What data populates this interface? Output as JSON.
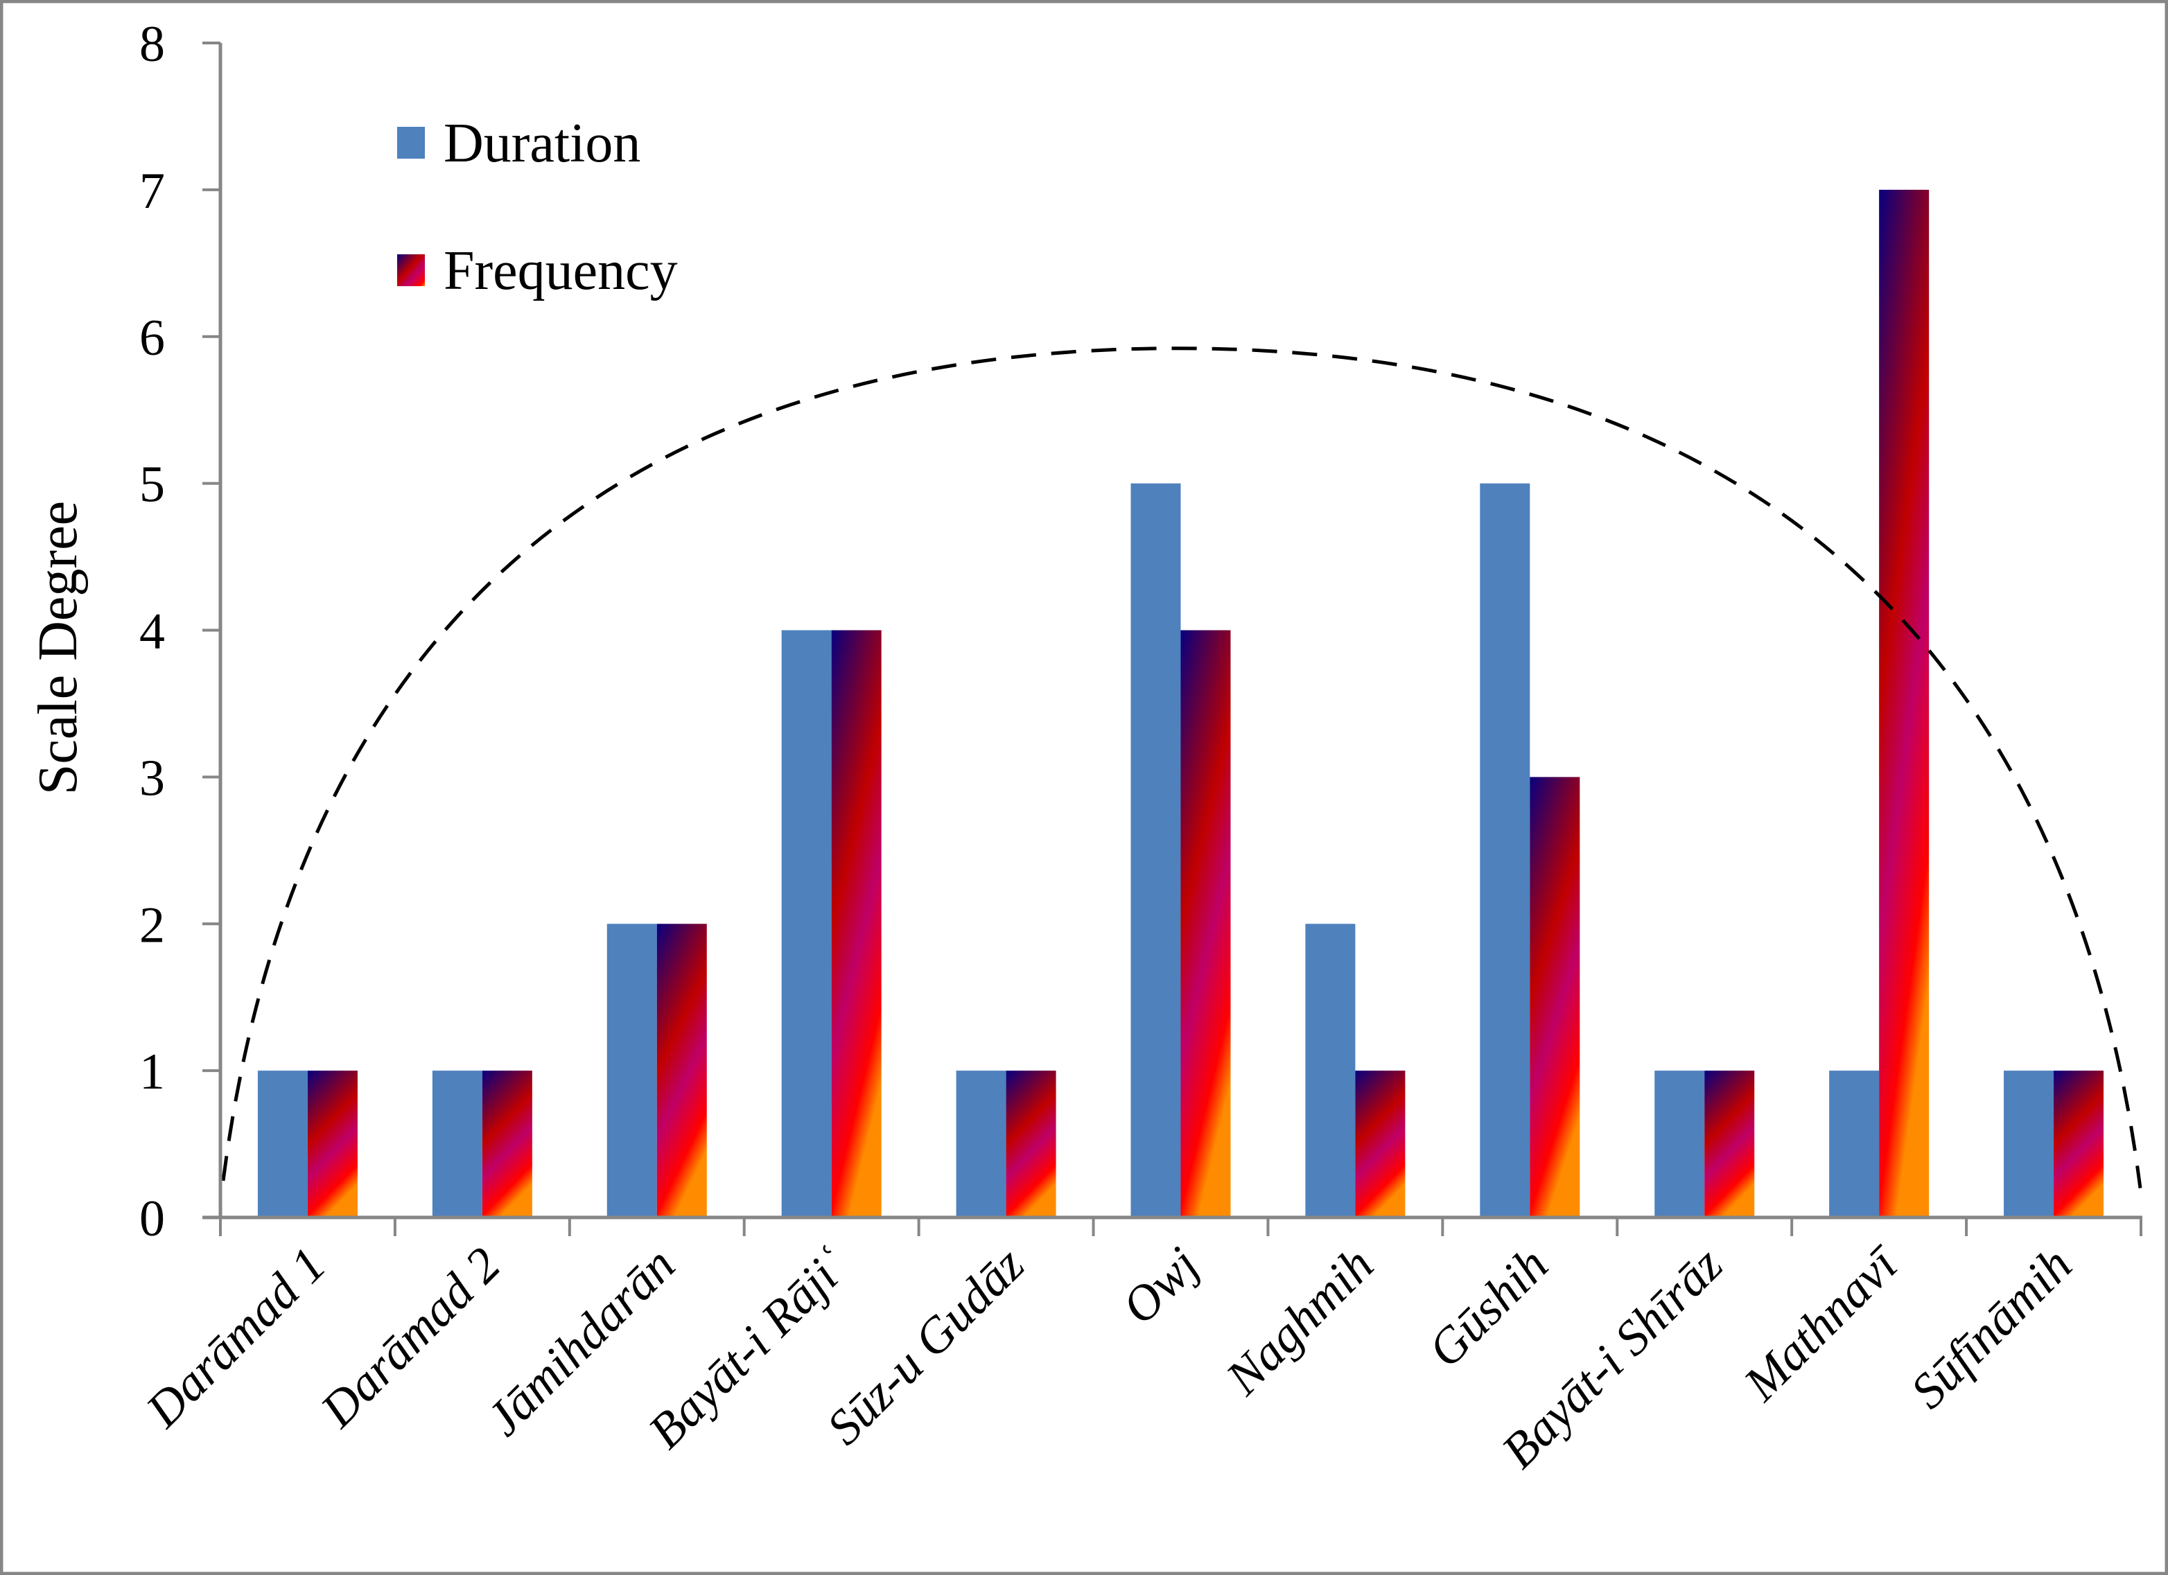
{
  "chart_data": {
    "type": "bar",
    "title": "",
    "xlabel": "",
    "ylabel": "Scale Degree",
    "ylim": [
      0,
      8
    ],
    "yticks": [
      "0",
      "1",
      "2",
      "3",
      "4",
      "5",
      "6",
      "7",
      "8"
    ],
    "grid": false,
    "legend_position": "top-left",
    "categories": [
      "Darāmad 1",
      "Darāmad 2",
      "Jāmihdarān",
      "Bayāt-i Rājiʿ",
      "Sūz-u Gudāz",
      "Owj",
      "Naghmih",
      "Gūshih",
      "Bayāt-i Shīrāz",
      "Mathnavī",
      "Sūfīnāmih"
    ],
    "series": [
      {
        "name": "Duration",
        "color": "#4F81BD",
        "values": [
          1,
          1,
          2,
          4,
          1,
          5,
          2,
          5,
          1,
          1,
          1
        ]
      },
      {
        "name": "Frequency",
        "color": "gradient",
        "gradient_colors": [
          "#000080",
          "#C00000",
          "#C0006E",
          "#FF0000",
          "#FF8C00"
        ],
        "values": [
          1,
          1,
          2,
          4,
          1,
          4,
          1,
          3,
          1,
          7,
          1
        ]
      }
    ],
    "annotations": [
      {
        "type": "dashed-arc",
        "description": "trend",
        "peak_value": 5.92,
        "start_value": 0.25,
        "end_value": 0.2
      }
    ]
  }
}
